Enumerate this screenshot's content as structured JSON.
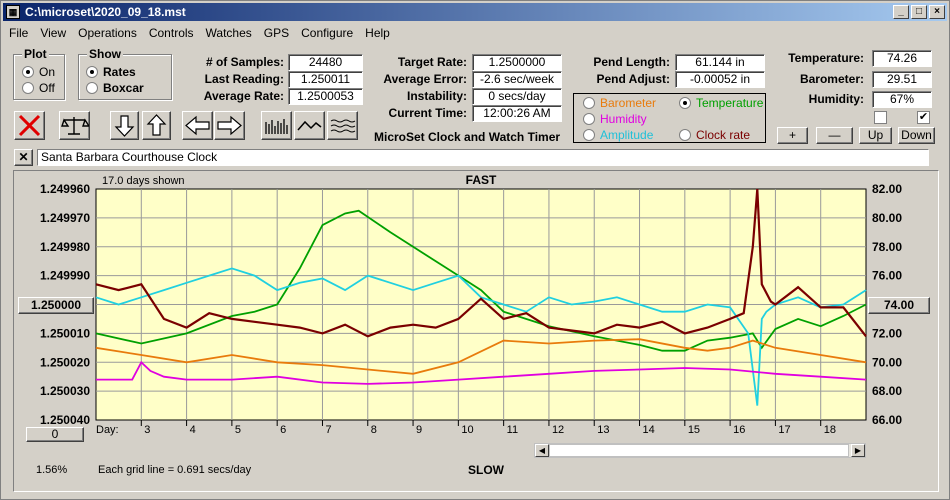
{
  "window": {
    "title": "C:\\microset\\2020_09_18.mst"
  },
  "title_buttons": {
    "min": "_",
    "max": "□",
    "close": "×"
  },
  "menu": [
    "File",
    "View",
    "Operations",
    "Controls",
    "Watches",
    "GPS",
    "Configure",
    "Help"
  ],
  "plot_group": {
    "title": "Plot",
    "on": "On",
    "off": "Off",
    "selected": "On"
  },
  "show_group": {
    "title": "Show",
    "rates": "Rates",
    "boxcar": "Boxcar",
    "selected": "Rates"
  },
  "stats": {
    "samples_label": "# of Samples:",
    "samples": "24480",
    "last_reading_label": "Last Reading:",
    "last_reading": "1.250011",
    "avg_rate_label": "Average Rate:",
    "avg_rate": "1.2500053",
    "target_rate_label": "Target Rate:",
    "target_rate": "1.2500000",
    "avg_error_label": "Average Error:",
    "avg_error": "-2.6 sec/week",
    "instability_label": "Instability:",
    "instability": "0 secs/day",
    "current_time_label": "Current Time:",
    "current_time": "12:00:26 AM",
    "pend_length_label": "Pend Length:",
    "pend_length": "61.144 in",
    "pend_adjust_label": "Pend Adjust:",
    "pend_adjust": "-0.00052 in",
    "temperature_label": "Temperature:",
    "temperature": "74.26",
    "barometer_label": "Barometer:",
    "barometer": "29.51",
    "humidity_label": "Humidity:",
    "humidity": "67%"
  },
  "app_caption": "MicroSet Clock and Watch Timer",
  "sensors": {
    "barometer": "Barometer",
    "temperature": "Temperature",
    "humidity": "Humidity",
    "amplitude": "Amplitude",
    "clock_rate": "Clock rate",
    "selected": "Temperature",
    "colors": {
      "barometer": "#e87b0c",
      "temperature": "#00a000",
      "humidity": "#e000e0",
      "amplitude": "#20d0e0",
      "clock_rate": "#7a0000"
    }
  },
  "scale_buttons": {
    "plus": "+",
    "minus": "—",
    "up": "Up",
    "down": "Down"
  },
  "clock_name": "Santa Barbara Courthouse Clock",
  "chart": {
    "days_shown": "17.0 days shown",
    "top_label": "FAST",
    "bottom_label": "SLOW",
    "grid_note": "Each grid line = 0.691 secs/day",
    "percent": "1.56%",
    "left_center_button": "1.250000",
    "right_center_button": "74.00",
    "zero_button": "0",
    "day_prefix": "Day:"
  },
  "chart_data": {
    "type": "line",
    "left_axis_ticks": [
      "1.249960",
      "1.249970",
      "1.249980",
      "1.249990",
      "1.250000",
      "1.250010",
      "1.250020",
      "1.250030",
      "1.250040"
    ],
    "right_axis_ticks": [
      "82.00",
      "80.00",
      "78.00",
      "76.00",
      "74.00",
      "72.00",
      "70.00",
      "68.00",
      "66.00"
    ],
    "x_ticks": [
      "3",
      "4",
      "5",
      "6",
      "7",
      "8",
      "9",
      "10",
      "11",
      "12",
      "13",
      "14",
      "15",
      "16",
      "17",
      "18"
    ],
    "xlim": [
      2.0,
      19.0
    ],
    "left_ylim": [
      1.24996,
      1.25004
    ],
    "right_ylim": [
      66,
      82
    ],
    "series": [
      {
        "name": "Temperature",
        "color": "#00a000",
        "x": [
          2.0,
          3.0,
          4.0,
          5.0,
          5.5,
          6.0,
          6.5,
          7.0,
          7.5,
          7.8,
          8.5,
          9.0,
          10.0,
          10.5,
          11.0,
          12.0,
          13.0,
          14.0,
          14.5,
          15.0,
          15.5,
          16.0,
          16.5,
          16.7,
          17.0,
          17.5,
          18.0,
          18.5,
          19.0
        ],
        "y": [
          72.0,
          71.3,
          72.0,
          73.2,
          73.5,
          74.0,
          76.5,
          79.5,
          80.3,
          80.5,
          79.0,
          78.0,
          76.0,
          75.0,
          73.5,
          72.5,
          71.8,
          71.2,
          70.8,
          70.8,
          71.5,
          71.7,
          72.0,
          71.0,
          72.3,
          73.0,
          72.5,
          73.2,
          74.0
        ]
      },
      {
        "name": "Amplitude",
        "color": "#20d0e0",
        "x": [
          2.0,
          2.5,
          3.0,
          3.5,
          4.0,
          4.5,
          5.0,
          5.5,
          6.0,
          6.5,
          7.0,
          7.5,
          8.0,
          8.5,
          9.0,
          9.5,
          10.0,
          10.5,
          11.0,
          11.5,
          12.0,
          12.5,
          13.0,
          13.5,
          14.0,
          14.5,
          15.0,
          15.5,
          16.0,
          16.4,
          16.6,
          16.7,
          16.8,
          17.0,
          17.5,
          18.0,
          18.5,
          19.0
        ],
        "y": [
          74.5,
          74.0,
          74.5,
          75.0,
          75.5,
          76.0,
          76.5,
          76.0,
          75.0,
          75.5,
          75.8,
          75.0,
          76.0,
          75.5,
          75.0,
          75.5,
          76.0,
          74.5,
          74.0,
          73.5,
          74.5,
          74.0,
          74.2,
          74.5,
          74.0,
          73.5,
          73.5,
          74.0,
          73.8,
          72.0,
          67.0,
          73.0,
          73.5,
          74.0,
          74.5,
          73.8,
          74.0,
          75.0
        ]
      },
      {
        "name": "Clock rate",
        "color": "#7a0000",
        "x": [
          2.0,
          2.5,
          3.0,
          3.5,
          4.0,
          4.5,
          5.0,
          5.5,
          6.0,
          6.5,
          7.0,
          7.5,
          8.0,
          8.5,
          9.0,
          9.5,
          10.0,
          10.5,
          11.0,
          11.5,
          12.0,
          12.5,
          13.0,
          13.5,
          14.0,
          14.5,
          15.0,
          15.5,
          16.0,
          16.3,
          16.5,
          16.6,
          16.7,
          16.9,
          17.0,
          17.5,
          18.0,
          18.5,
          19.0
        ],
        "y": [
          1.249993,
          1.249995,
          1.249993,
          1.250005,
          1.250008,
          1.250003,
          1.250005,
          1.250006,
          1.250007,
          1.250008,
          1.25001,
          1.250007,
          1.250011,
          1.250008,
          1.250007,
          1.250008,
          1.250005,
          1.249998,
          1.250005,
          1.250003,
          1.250008,
          1.250009,
          1.25001,
          1.250007,
          1.250008,
          1.250006,
          1.25001,
          1.250008,
          1.250005,
          1.250003,
          1.24998,
          1.24996,
          1.249993,
          1.249999,
          1.25,
          1.249994,
          1.250001,
          1.250001,
          1.250011
        ]
      },
      {
        "name": "Barometer",
        "color": "#e87b0c",
        "x": [
          2.0,
          3.0,
          4.0,
          5.0,
          6.0,
          7.0,
          8.0,
          9.0,
          10.0,
          11.0,
          12.0,
          13.0,
          14.0,
          15.0,
          15.5,
          16.0,
          16.5,
          17.0,
          18.0,
          19.0
        ],
        "y": [
          71.0,
          70.5,
          70.0,
          70.5,
          70.0,
          69.8,
          69.5,
          69.2,
          70.0,
          71.5,
          71.3,
          71.5,
          71.6,
          71.0,
          70.8,
          71.0,
          71.5,
          71.0,
          70.5,
          70.0
        ]
      },
      {
        "name": "Humidity",
        "color": "#e000e0",
        "x": [
          2.0,
          2.8,
          3.0,
          3.2,
          3.5,
          4.0,
          5.0,
          6.0,
          7.0,
          8.0,
          9.0,
          10.0,
          11.0,
          12.0,
          13.0,
          14.0,
          15.0,
          16.0,
          17.0,
          18.0,
          19.0
        ],
        "y": [
          68.8,
          68.8,
          70.0,
          69.4,
          69.0,
          68.8,
          68.8,
          69.0,
          68.6,
          68.5,
          68.6,
          68.8,
          69.0,
          69.2,
          69.4,
          69.5,
          69.6,
          69.5,
          69.2,
          69.0,
          68.8
        ]
      }
    ]
  }
}
